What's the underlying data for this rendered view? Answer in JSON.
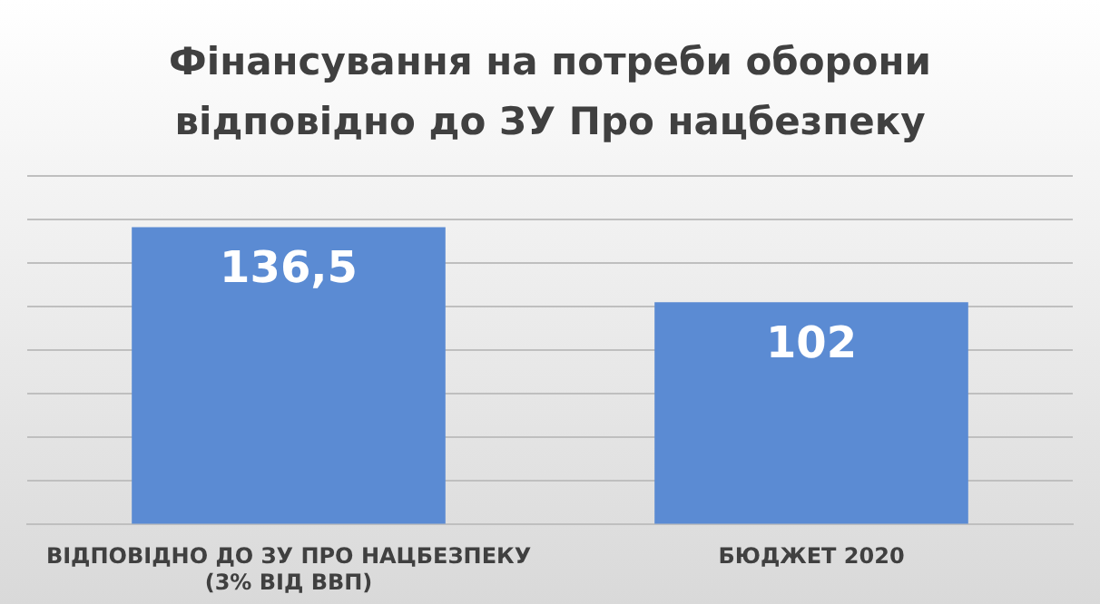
{
  "chart_data": {
    "type": "bar",
    "title": "Фінансування на потреби оборони відповідно до ЗУ Про нацбезпеку",
    "categories": [
      "ВІДПОВІДНО ДО ЗУ ПРО НАЦБЕЗПЕКУ (3% ВІД ВВП)",
      "БЮДЖЕТ 2020"
    ],
    "values": [
      136.5,
      102
    ],
    "value_labels": [
      "136,5",
      "102"
    ],
    "color": "#5b8bd3",
    "ylim": [
      0,
      160
    ],
    "yticks": [
      0,
      20,
      40,
      60,
      80,
      100,
      120,
      140,
      160
    ],
    "tick_labels": "x",
    "grid": "y",
    "legend": false
  }
}
